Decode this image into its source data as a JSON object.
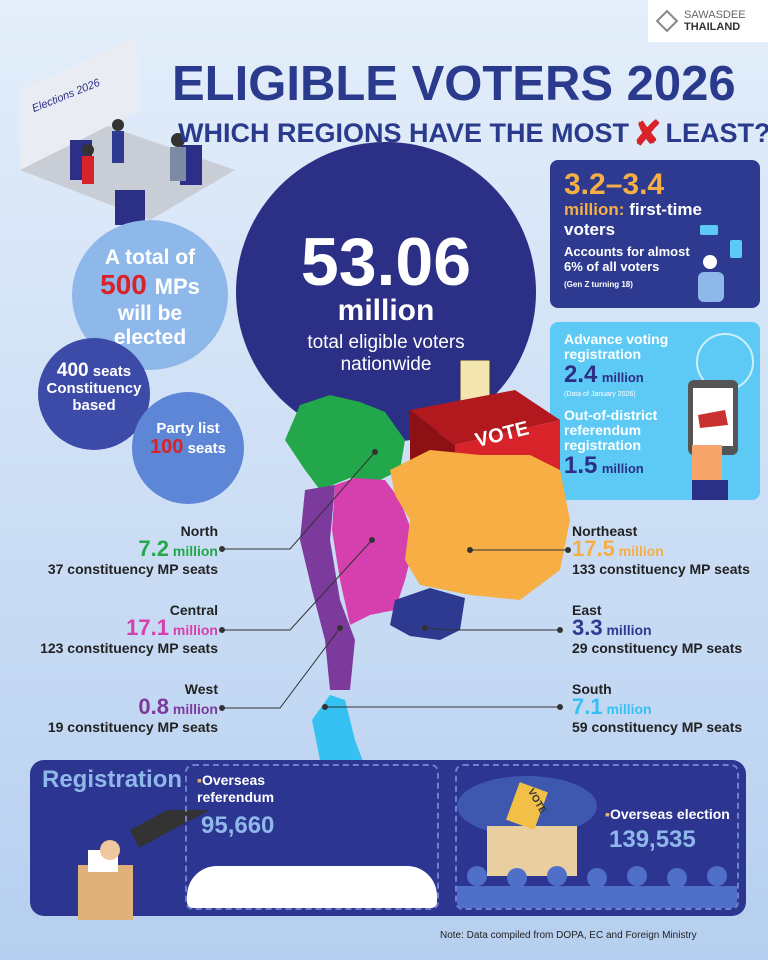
{
  "brand": {
    "line1": "SAWASDEE",
    "line2": "THAILAND"
  },
  "header": {
    "title": "ELIGIBLE VOTERS 2026",
    "subtitle_left": "WHICH REGIONS HAVE THE MOST",
    "subtitle_icon": "red-x-icon",
    "subtitle_right": "LEAST?"
  },
  "illustration": {
    "sign": "Elections 2026"
  },
  "total": {
    "value": "53.06",
    "unit": "million",
    "caption": "total eligible voters nationwide"
  },
  "mps": {
    "line1": "A total of",
    "value": "500",
    "unit": "MPs",
    "line3": "will be",
    "line4": "elected"
  },
  "constituency": {
    "value": "400",
    "unit": "seats",
    "line2": "Constituency",
    "line3": "based"
  },
  "partylist": {
    "line1": "Party list",
    "value": "100",
    "unit": "seats"
  },
  "first_time": {
    "range": "3.2–3.4",
    "unit": "million:",
    "label": "first-time voters",
    "share": "Accounts for almost 6% of all voters",
    "note": "(Gen Z turning 18)"
  },
  "advance": {
    "label": "Advance voting registration",
    "value": "2.4",
    "unit": "million",
    "note": "(Data of January 2026)"
  },
  "out_of_district": {
    "label": "Out-of-district referendum registration",
    "value": "1.5",
    "unit": "million"
  },
  "ballot": {
    "label": "VOTE"
  },
  "regions": [
    {
      "name": "North",
      "value": "7.2",
      "unit": "million",
      "seats": "37 constituency MP seats",
      "color": "#22a74a"
    },
    {
      "name": "Central",
      "value": "17.1",
      "unit": "million",
      "seats": "123 constituency MP seats",
      "color": "#d63fae"
    },
    {
      "name": "West",
      "value": "0.8",
      "unit": "million",
      "seats": "19 constituency MP seats",
      "color": "#7b3a9c"
    },
    {
      "name": "Northeast",
      "value": "17.5",
      "unit": "million",
      "seats": "133 constituency MP seats",
      "color": "#f6ae45"
    },
    {
      "name": "East",
      "value": "3.3",
      "unit": "million",
      "seats": "29 constituency MP seats",
      "color": "#2d3a8f"
    },
    {
      "name": "South",
      "value": "7.1",
      "unit": "million",
      "seats": "59 constituency MP seats",
      "color": "#35c1f1"
    }
  ],
  "registration": {
    "title": "Registration",
    "overseas_referendum_label": "Overseas referendum",
    "overseas_referendum_value": "95,660",
    "overseas_election_label": "Overseas election",
    "overseas_election_value": "139,535",
    "box_label": "VOTE"
  },
  "note": "Note: Data compiled from DOPA, EC and Foreign Ministry"
}
